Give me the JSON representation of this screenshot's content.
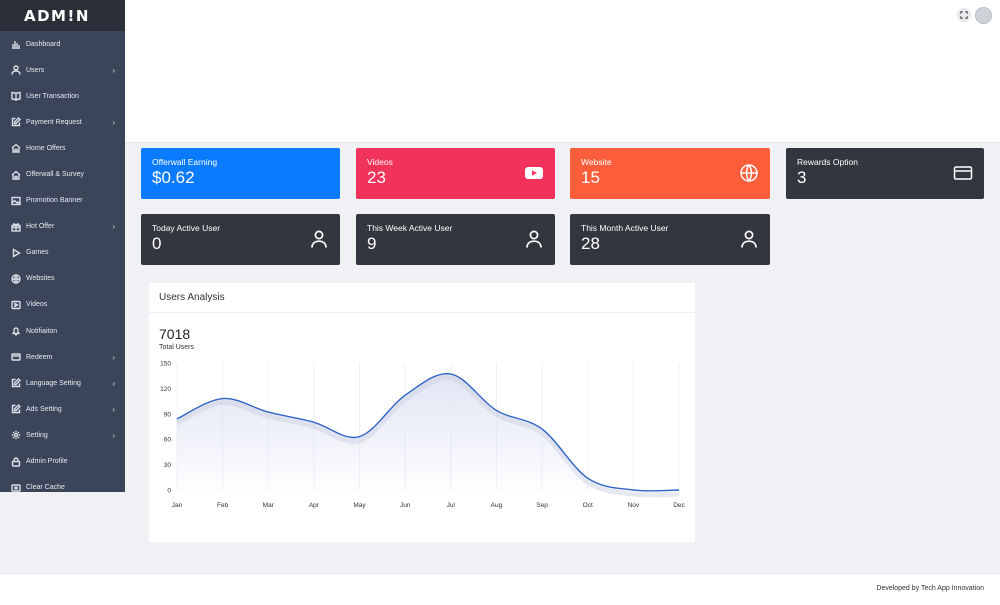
{
  "brand": {
    "logo_text": "ADM!N"
  },
  "sidebar": {
    "items": [
      {
        "label": "Dashboard",
        "icon": "bar-chart-icon",
        "submenu": false
      },
      {
        "label": "Users",
        "icon": "user-icon",
        "submenu": true
      },
      {
        "label": "User Transaction",
        "icon": "book-icon",
        "submenu": false
      },
      {
        "label": "Payment Request",
        "icon": "edit-icon",
        "submenu": true
      },
      {
        "label": "Home Offers",
        "icon": "home-icon",
        "submenu": false
      },
      {
        "label": "Offerwall & Survey",
        "icon": "home-icon",
        "submenu": false
      },
      {
        "label": "Promotion Banner",
        "icon": "image-icon",
        "submenu": false
      },
      {
        "label": "Hot Offer",
        "icon": "gift-icon",
        "submenu": true
      },
      {
        "label": "Games",
        "icon": "play-icon",
        "submenu": false
      },
      {
        "label": "Websites",
        "icon": "globe-icon",
        "submenu": false
      },
      {
        "label": "Videos",
        "icon": "video-icon",
        "submenu": false
      },
      {
        "label": "Notifiaiton",
        "icon": "bell-icon",
        "submenu": false
      },
      {
        "label": "Redeem",
        "icon": "card-icon",
        "submenu": true
      },
      {
        "label": "Language Setting",
        "icon": "edit-icon",
        "submenu": true
      },
      {
        "label": "Ads Setting",
        "icon": "edit-icon",
        "submenu": true
      },
      {
        "label": "Setting",
        "icon": "gear-icon",
        "submenu": true
      },
      {
        "label": "Admin Profile",
        "icon": "lock-icon",
        "submenu": false
      },
      {
        "label": "Clear Cache",
        "icon": "cache-icon",
        "submenu": false
      }
    ],
    "chevron": "›"
  },
  "cards": [
    {
      "title": "Offerwall Earning",
      "value": "$0.62",
      "color": "#0a7bff",
      "icon": ""
    },
    {
      "title": "Videos",
      "value": "23",
      "color": "#f1325a",
      "icon": "youtube-icon"
    },
    {
      "title": "Website",
      "value": "15",
      "color": "#fc5e3b",
      "icon": "globe-icon"
    },
    {
      "title": "Rewards Option",
      "value": "3",
      "color": "#33363e",
      "icon": "card-icon"
    },
    {
      "title": "Today Active User",
      "value": "0",
      "color": "#33363e",
      "icon": "user-icon"
    },
    {
      "title": "This Week Active User",
      "value": "9",
      "color": "#33363e",
      "icon": "user-icon"
    },
    {
      "title": "This Month Active User",
      "value": "28",
      "color": "#33363e",
      "icon": "user-icon"
    }
  ],
  "analysis": {
    "title": "Users Analysis",
    "total_value": "7018",
    "total_label": "Total Users"
  },
  "chart_data": {
    "type": "area",
    "categories": [
      "Jan",
      "Feb",
      "Mar",
      "Apr",
      "May",
      "Jun",
      "Jul",
      "Aug",
      "Sep",
      "Oct",
      "Nov",
      "Dec"
    ],
    "series": [
      {
        "values": [
          84,
          108,
          92,
          80,
          63,
          112,
          137,
          94,
          72,
          14,
          0,
          0
        ]
      }
    ],
    "y_ticks": [
      0,
      30,
      60,
      90,
      120,
      150
    ],
    "ylim": [
      0,
      150
    ],
    "grid": "vertical",
    "line_color": "#2f63c6",
    "fill_color": "#dfe4f3"
  },
  "footer": {
    "text": "Developed by Tech App Innovation"
  }
}
